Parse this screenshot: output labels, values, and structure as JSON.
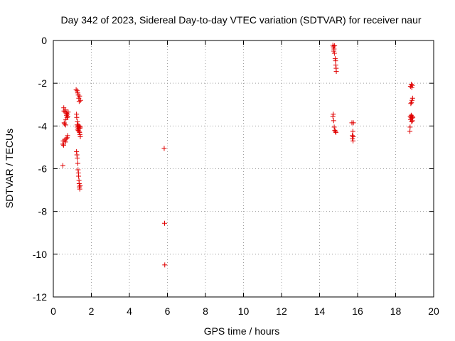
{
  "chart_data": {
    "type": "scatter",
    "title": "Day 342 of 2023, Sidereal Day-to-day VTEC variation (SDTVAR) for receiver naur",
    "xlabel": "GPS time / hours",
    "ylabel": "SDTVAR / TECUs",
    "xlim": [
      0,
      20
    ],
    "ylim": [
      -12,
      0
    ],
    "xticks": [
      0,
      2,
      4,
      6,
      8,
      10,
      12,
      14,
      16,
      18,
      20
    ],
    "yticks": [
      0,
      -2,
      -4,
      -6,
      -8,
      -10,
      -12
    ],
    "xtick_labels": [
      "0",
      "2",
      "4",
      "6",
      "8",
      "10",
      "12",
      "14",
      "16",
      "18",
      "20"
    ],
    "ytick_labels": [
      "0",
      "-2",
      "-4",
      "-6",
      "-8",
      "-10",
      "-12"
    ],
    "grid": true,
    "marker": "+",
    "color": "#e00000",
    "series": [
      {
        "name": "SDTVAR",
        "points": [
          [
            0.5,
            -5.85
          ],
          [
            0.5,
            -4.85
          ],
          [
            0.52,
            -4.7
          ],
          [
            0.54,
            -4.9
          ],
          [
            0.55,
            -3.15
          ],
          [
            0.56,
            -3.3
          ],
          [
            0.57,
            -3.85
          ],
          [
            0.58,
            -3.9
          ],
          [
            0.6,
            -4.65
          ],
          [
            0.62,
            -3.35
          ],
          [
            0.63,
            -3.25
          ],
          [
            0.64,
            -4.75
          ],
          [
            0.65,
            -3.95
          ],
          [
            0.66,
            -3.7
          ],
          [
            0.68,
            -4.6
          ],
          [
            0.69,
            -3.5
          ],
          [
            0.7,
            -3.4
          ],
          [
            0.72,
            -3.6
          ],
          [
            0.73,
            -4.55
          ],
          [
            0.74,
            -3.45
          ],
          [
            0.75,
            -4.45
          ],
          [
            0.76,
            -3.55
          ],
          [
            0.78,
            -3.35
          ],
          [
            1.2,
            -2.3
          ],
          [
            1.22,
            -3.45
          ],
          [
            1.22,
            -5.2
          ],
          [
            1.23,
            -3.6
          ],
          [
            1.24,
            -5.35
          ],
          [
            1.25,
            -2.35
          ],
          [
            1.25,
            -3.95
          ],
          [
            1.26,
            -4.05
          ],
          [
            1.26,
            -5.5
          ],
          [
            1.27,
            -3.8
          ],
          [
            1.28,
            -2.45
          ],
          [
            1.28,
            -4.15
          ],
          [
            1.29,
            -5.75
          ],
          [
            1.3,
            -3.95
          ],
          [
            1.3,
            -6.05
          ],
          [
            1.31,
            -2.55
          ],
          [
            1.31,
            -4.2
          ],
          [
            1.32,
            -4.0
          ],
          [
            1.32,
            -6.2
          ],
          [
            1.33,
            -6.35
          ],
          [
            1.34,
            -2.7
          ],
          [
            1.34,
            -4.1
          ],
          [
            1.35,
            -4.25
          ],
          [
            1.35,
            -6.55
          ],
          [
            1.36,
            -2.85
          ],
          [
            1.36,
            -6.7
          ],
          [
            1.37,
            -4.0
          ],
          [
            1.37,
            -6.85
          ],
          [
            1.38,
            -4.3
          ],
          [
            1.38,
            -2.6
          ],
          [
            1.39,
            -6.95
          ],
          [
            1.4,
            -4.1
          ],
          [
            1.4,
            -4.4
          ],
          [
            1.41,
            -6.8
          ],
          [
            1.42,
            -4.5
          ],
          [
            1.42,
            -4.05
          ],
          [
            1.43,
            -2.8
          ],
          [
            5.83,
            -5.05
          ],
          [
            5.85,
            -8.55
          ],
          [
            5.86,
            -10.5
          ],
          [
            14.7,
            -0.22
          ],
          [
            14.7,
            -3.55
          ],
          [
            14.72,
            -3.45
          ],
          [
            14.73,
            -0.3
          ],
          [
            14.74,
            -3.75
          ],
          [
            14.75,
            -0.5
          ],
          [
            14.76,
            -0.4
          ],
          [
            14.77,
            -4.05
          ],
          [
            14.78,
            -0.6
          ],
          [
            14.79,
            -0.25
          ],
          [
            14.8,
            -4.2
          ],
          [
            14.82,
            -0.85
          ],
          [
            14.83,
            -4.25
          ],
          [
            14.84,
            -0.95
          ],
          [
            14.85,
            -1.15
          ],
          [
            14.86,
            -4.3
          ],
          [
            14.87,
            -1.3
          ],
          [
            14.88,
            -1.45
          ],
          [
            15.7,
            -3.85
          ],
          [
            15.72,
            -4.45
          ],
          [
            15.73,
            -4.6
          ],
          [
            15.75,
            -4.25
          ],
          [
            15.76,
            -4.7
          ],
          [
            15.77,
            -4.5
          ],
          [
            15.78,
            -3.85
          ],
          [
            18.75,
            -4.25
          ],
          [
            18.76,
            -4.05
          ],
          [
            18.77,
            -3.55
          ],
          [
            18.78,
            -2.15
          ],
          [
            18.79,
            -3.7
          ],
          [
            18.8,
            -2.95
          ],
          [
            18.81,
            -3.6
          ],
          [
            18.82,
            -2.05
          ],
          [
            18.82,
            -3.5
          ],
          [
            18.83,
            -2.9
          ],
          [
            18.84,
            -3.8
          ],
          [
            18.85,
            -2.2
          ],
          [
            18.85,
            -3.65
          ],
          [
            18.86,
            -2.8
          ],
          [
            18.87,
            -3.55
          ],
          [
            18.88,
            -2.1
          ],
          [
            18.88,
            -3.75
          ],
          [
            18.89,
            -2.7
          ],
          [
            18.9,
            -3.6
          ]
        ]
      }
    ]
  }
}
